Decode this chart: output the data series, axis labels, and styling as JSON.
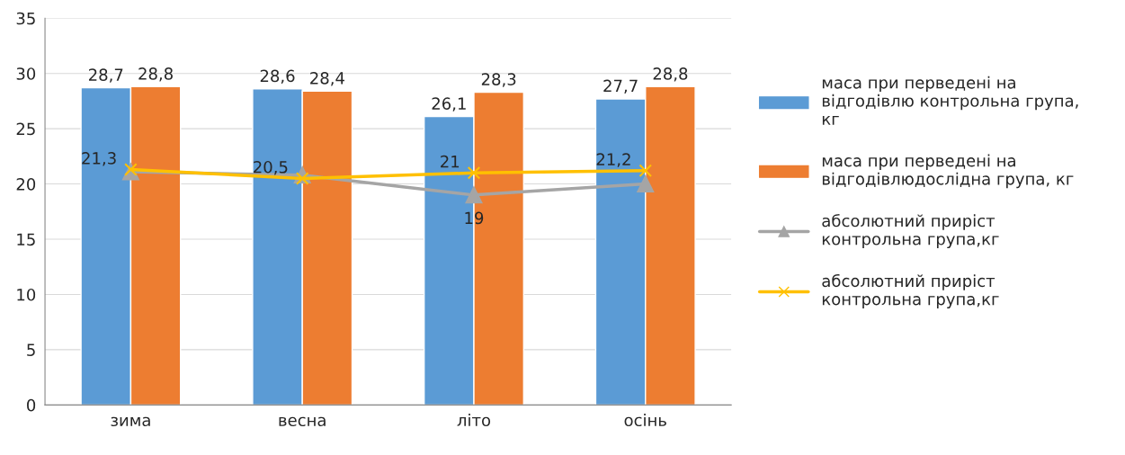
{
  "chart_data": {
    "type": "bar",
    "categories": [
      "зима",
      "весна",
      "літо",
      "осінь"
    ],
    "series": [
      {
        "name": "маса при перведені на відгодівлю контрольна група, кг",
        "color": "#5b9bd5",
        "values": [
          28.7,
          28.6,
          26.1,
          27.7
        ],
        "value_labels": [
          "28,7",
          "28,6",
          "26,1",
          "27,7"
        ]
      },
      {
        "name": "маса при перведені на відгодівлюдослідна група, кг",
        "color": "#ed7d31",
        "values": [
          28.8,
          28.4,
          28.3,
          28.8
        ],
        "value_labels": [
          "28,8",
          "28,4",
          "28,3",
          "28,8"
        ]
      },
      {
        "name": "абсолютний приріст контрольна група,кг",
        "type": "line",
        "marker": "triangle",
        "color": "#a5a5a5",
        "values": [
          21.1,
          20.8,
          19,
          20
        ],
        "value_labels": [
          null,
          null,
          "19",
          null
        ]
      },
      {
        "name": "абсолютний приріст контрольна група,кг",
        "type": "line",
        "marker": "cross",
        "color": "#ffc000",
        "values": [
          21.3,
          20.5,
          21,
          21.2
        ],
        "value_labels": [
          "21,3",
          "20,5",
          "21",
          "21,2"
        ]
      }
    ],
    "ylim": [
      0,
      35
    ],
    "yticks": [
      0,
      5,
      10,
      15,
      20,
      25,
      30,
      35
    ],
    "grid": "y",
    "legend": "right"
  }
}
